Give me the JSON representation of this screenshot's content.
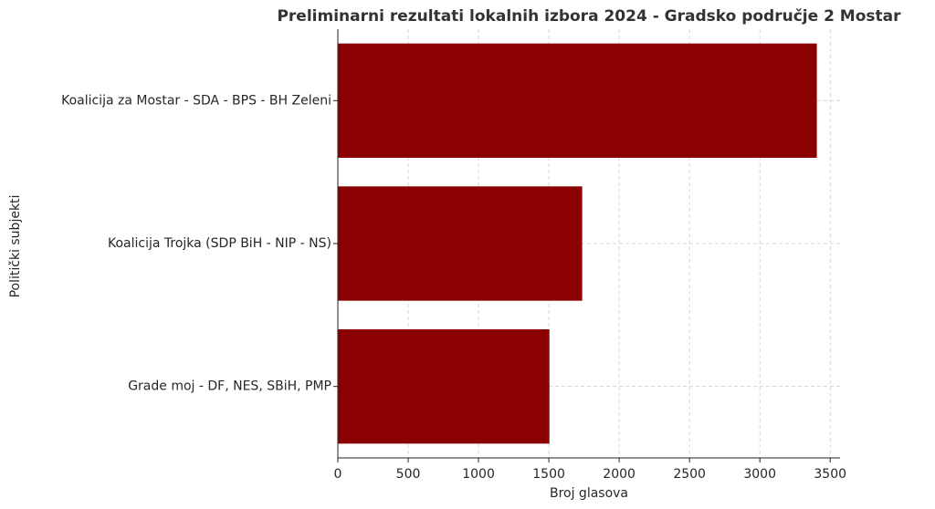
{
  "chart_data": {
    "type": "barh",
    "title": "Preliminarni rezultati lokalnih izbora 2024 - Gradsko područje 2 Mostar",
    "xlabel": "Broj glasova",
    "ylabel": "Politički subjekti",
    "categories": [
      "Koalicija za Mostar - SDA - BPS - BH Zeleni",
      "Koalicija Trojka (SDP BiH - NIP - NS)",
      "Grade moj - DF, NES, SBiH, PMP"
    ],
    "values": [
      3405,
      1737,
      1504
    ],
    "color": "#8b0000",
    "xlim": [
      0,
      3570
    ],
    "xticks": [
      0,
      500,
      1000,
      1500,
      2000,
      2500,
      3000,
      3500
    ],
    "grid": true
  }
}
